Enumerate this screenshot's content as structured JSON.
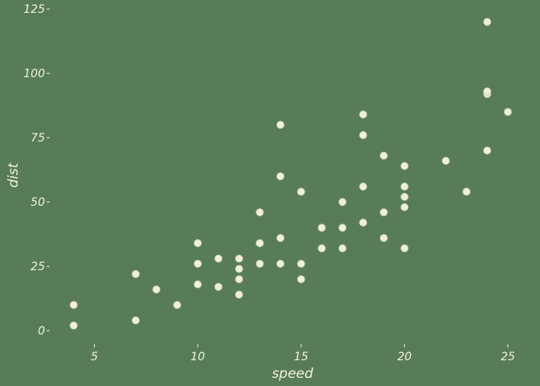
{
  "chart_data": {
    "type": "scatter",
    "title": "",
    "xlabel": "speed",
    "ylabel": "dist",
    "xlim": [
      3.0,
      25.7
    ],
    "ylim": [
      -4,
      126
    ],
    "xticks": [
      5,
      10,
      15,
      20,
      25
    ],
    "yticks": [
      0,
      25,
      50,
      75,
      100,
      125
    ],
    "grid": false,
    "legend": "none",
    "colors": {
      "background": "#587c58",
      "points": "#f0f0d8",
      "text": "#f2f2e0"
    },
    "points": [
      [
        4,
        2
      ],
      [
        4,
        10
      ],
      [
        7,
        4
      ],
      [
        7,
        22
      ],
      [
        8,
        16
      ],
      [
        9,
        10
      ],
      [
        10,
        18
      ],
      [
        10,
        26
      ],
      [
        10,
        34
      ],
      [
        11,
        17
      ],
      [
        11,
        28
      ],
      [
        12,
        14
      ],
      [
        12,
        20
      ],
      [
        12,
        24
      ],
      [
        12,
        28
      ],
      [
        13,
        26
      ],
      [
        13,
        34
      ],
      [
        13,
        34
      ],
      [
        13,
        46
      ],
      [
        14,
        26
      ],
      [
        14,
        36
      ],
      [
        14,
        60
      ],
      [
        14,
        80
      ],
      [
        15,
        20
      ],
      [
        15,
        26
      ],
      [
        15,
        54
      ],
      [
        16,
        32
      ],
      [
        16,
        40
      ],
      [
        17,
        32
      ],
      [
        17,
        40
      ],
      [
        17,
        50
      ],
      [
        18,
        42
      ],
      [
        18,
        56
      ],
      [
        18,
        76
      ],
      [
        18,
        84
      ],
      [
        19,
        36
      ],
      [
        19,
        46
      ],
      [
        19,
        68
      ],
      [
        20,
        32
      ],
      [
        20,
        48
      ],
      [
        20,
        52
      ],
      [
        20,
        56
      ],
      [
        20,
        64
      ],
      [
        22,
        66
      ],
      [
        23,
        54
      ],
      [
        24,
        70
      ],
      [
        24,
        92
      ],
      [
        24,
        93
      ],
      [
        24,
        120
      ],
      [
        25,
        85
      ]
    ]
  }
}
